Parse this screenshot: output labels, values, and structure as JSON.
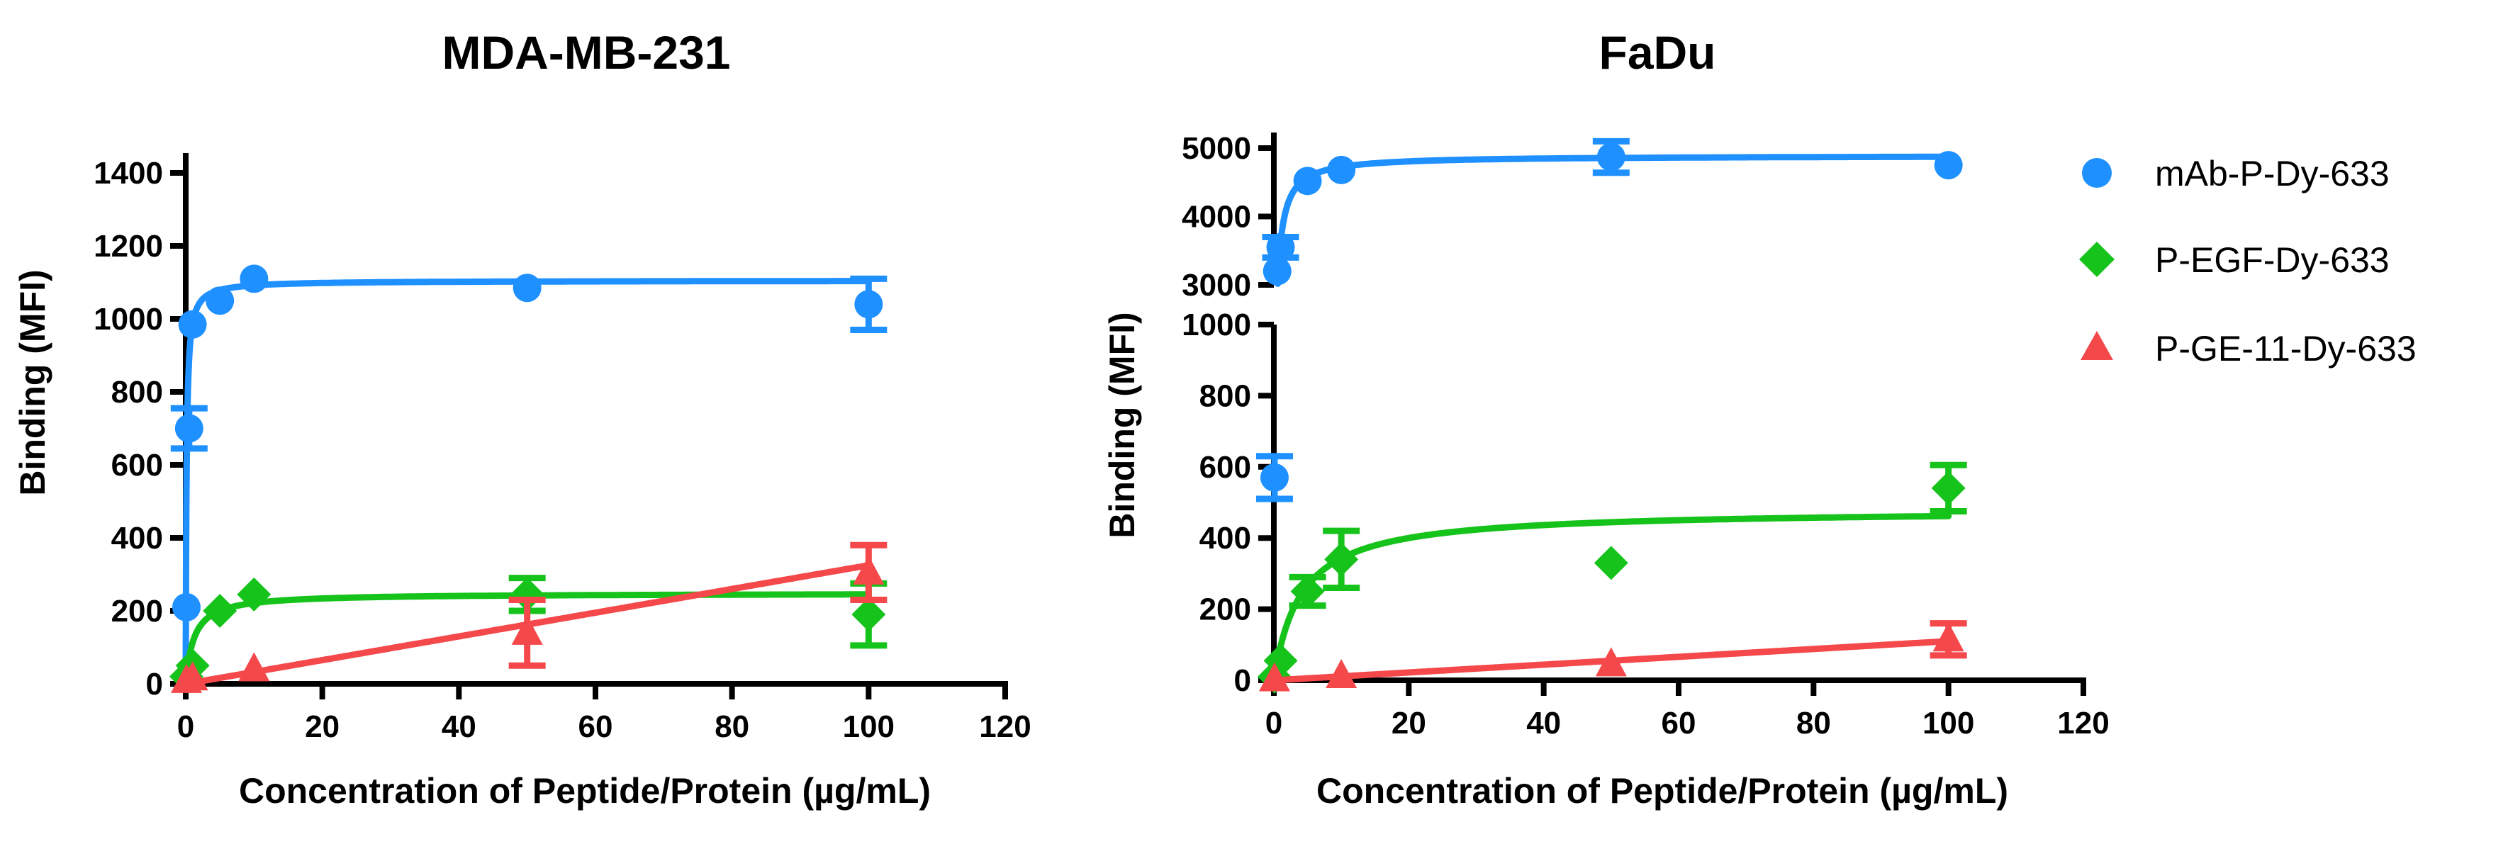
{
  "colors": {
    "blue": "#1e90ff",
    "green": "#16c31b",
    "red": "#f4484b",
    "axis": "#000000"
  },
  "legend": [
    {
      "name": "mAb-P-Dy-633",
      "marker": "circle",
      "color_key": "blue"
    },
    {
      "name": "P-EGF-Dy-633",
      "marker": "diamond",
      "color_key": "green"
    },
    {
      "name": "P-GE-11-Dy-633",
      "marker": "triangle",
      "color_key": "red"
    }
  ],
  "chart_data": [
    {
      "type": "scatter",
      "title": "MDA-MB-231",
      "xlabel": "Concentration of Peptide/Protein (µg/mL)",
      "ylabel": "Binding (MFI)",
      "xlim": [
        0,
        120
      ],
      "ylim": [
        0,
        1400
      ],
      "xticks": [
        0,
        20,
        40,
        60,
        80,
        100,
        120
      ],
      "yticks": [
        0,
        200,
        400,
        600,
        800,
        1000,
        1200,
        1400
      ],
      "series": [
        {
          "name": "mAb-P-Dy-633",
          "color_key": "blue",
          "marker": "circle",
          "points": [
            {
              "x": 0.1,
              "y": 210,
              "err": 0
            },
            {
              "x": 0.5,
              "y": 700,
              "err": 55
            },
            {
              "x": 1,
              "y": 985,
              "err": 0
            },
            {
              "x": 5,
              "y": 1050,
              "err": 0
            },
            {
              "x": 10,
              "y": 1110,
              "err": 0
            },
            {
              "x": 50,
              "y": 1085,
              "err": 0
            },
            {
              "x": 100,
              "y": 1040,
              "err": 70
            }
          ],
          "fit": {
            "model": "hyperbola",
            "bmax": 1105,
            "kd": 0.12,
            "slope": 0
          }
        },
        {
          "name": "P-EGF-Dy-633",
          "color_key": "green",
          "marker": "diamond",
          "points": [
            {
              "x": 0.1,
              "y": 20,
              "err": 0
            },
            {
              "x": 1,
              "y": 50,
              "err": 0
            },
            {
              "x": 5,
              "y": 200,
              "err": 0
            },
            {
              "x": 10,
              "y": 245,
              "err": 0
            },
            {
              "x": 50,
              "y": 245,
              "err": 45
            },
            {
              "x": 100,
              "y": 190,
              "err": 85
            }
          ],
          "fit": {
            "model": "hyperbola",
            "bmax": 248,
            "kd": 1.2,
            "slope": 0
          }
        },
        {
          "name": "P-GE-11-Dy-633",
          "color_key": "red",
          "marker": "triangle",
          "points": [
            {
              "x": 0.1,
              "y": 8,
              "err": 0
            },
            {
              "x": 1,
              "y": 15,
              "err": 0
            },
            {
              "x": 10,
              "y": 40,
              "err": 0
            },
            {
              "x": 50,
              "y": 140,
              "err": 90
            },
            {
              "x": 100,
              "y": 305,
              "err": 75
            }
          ],
          "fit": {
            "model": "linear",
            "slope": 3.25,
            "intercept": 0
          }
        }
      ]
    },
    {
      "type": "scatter",
      "title": "FaDu",
      "xlabel": "Concentration of Peptide/Protein (µg/mL)",
      "ylabel": "Binding (MFI)",
      "xlim": [
        0,
        120
      ],
      "ylim": [
        0,
        5000
      ],
      "y_axis_break": {
        "lower": [
          0,
          1000
        ],
        "upper": [
          3000,
          5000
        ]
      },
      "xticks": [
        0,
        20,
        40,
        60,
        80,
        100,
        120
      ],
      "yticks": [
        0,
        200,
        400,
        600,
        800,
        1000,
        3000,
        4000,
        5000
      ],
      "series": [
        {
          "name": "mAb-P-Dy-633",
          "color_key": "blue",
          "marker": "circle",
          "points": [
            {
              "x": 0.1,
              "y": 570,
              "err": 60
            },
            {
              "x": 0.5,
              "y": 3200,
              "err": 0
            },
            {
              "x": 1,
              "y": 3550,
              "err": 150
            },
            {
              "x": 5,
              "y": 4520,
              "err": 0
            },
            {
              "x": 10,
              "y": 4680,
              "err": 0
            },
            {
              "x": 50,
              "y": 4870,
              "err": 230
            },
            {
              "x": 100,
              "y": 4750,
              "err": 0
            }
          ],
          "fit": {
            "model": "hyperbola",
            "bmax": 4890,
            "kd": 0.35,
            "slope": 0,
            "y_from": 3000
          }
        },
        {
          "name": "P-EGF-Dy-633",
          "color_key": "green",
          "marker": "diamond",
          "points": [
            {
              "x": 0.1,
              "y": 10,
              "err": 0
            },
            {
              "x": 1,
              "y": 55,
              "err": 0
            },
            {
              "x": 5,
              "y": 250,
              "err": 40
            },
            {
              "x": 10,
              "y": 340,
              "err": 80
            },
            {
              "x": 50,
              "y": 330,
              "err": 0
            },
            {
              "x": 100,
              "y": 540,
              "err": 65
            }
          ],
          "fit": {
            "model": "hyperbola",
            "bmax": 480,
            "kd": 4.0,
            "slope": 0
          }
        },
        {
          "name": "P-GE-11-Dy-633",
          "color_key": "red",
          "marker": "triangle",
          "points": [
            {
              "x": 0.1,
              "y": 3,
              "err": 0
            },
            {
              "x": 10,
              "y": 12,
              "err": 0
            },
            {
              "x": 50,
              "y": 45,
              "err": 0
            },
            {
              "x": 100,
              "y": 115,
              "err": 45
            }
          ],
          "fit": {
            "model": "linear",
            "slope": 1.1,
            "intercept": 0
          }
        }
      ]
    }
  ]
}
